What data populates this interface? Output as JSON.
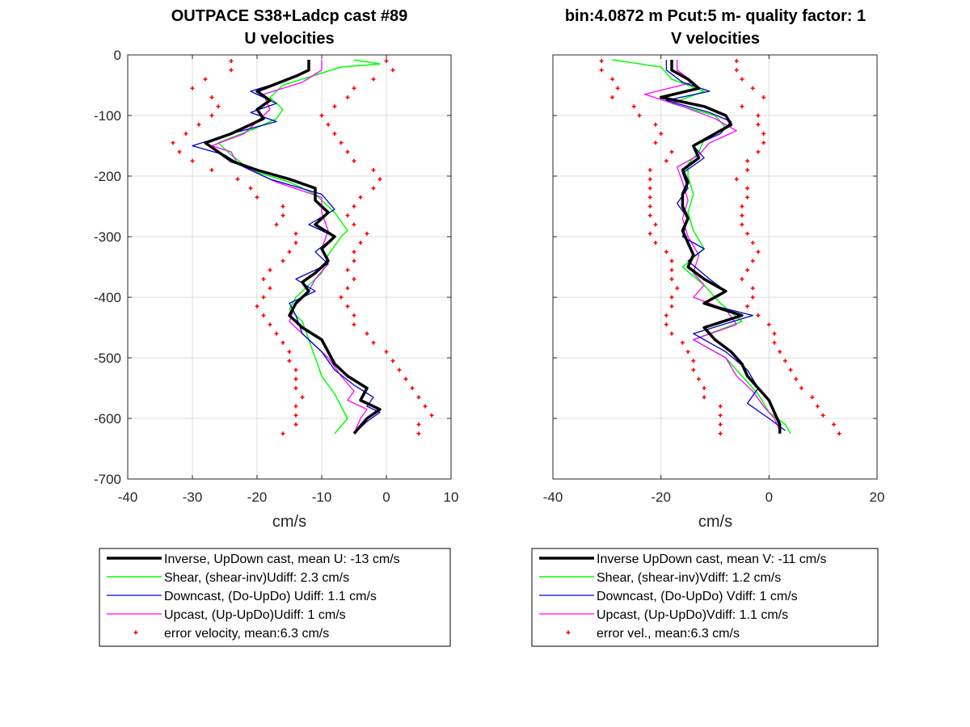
{
  "chart_data": [
    {
      "type": "line",
      "title": "OUTPACE S38+Ladcp cast #89",
      "subtitle": "U velocities",
      "xlabel": "cm/s",
      "ylabel": "",
      "xlim": [
        -40,
        10
      ],
      "ylim": [
        -700,
        0
      ],
      "xticks": [
        "-40",
        "-30",
        "-20",
        "-10",
        "0",
        "10"
      ],
      "yticks": [
        "0",
        "-100",
        "-200",
        "-300",
        "-400",
        "-500",
        "-600",
        "-700"
      ],
      "grid": true,
      "legend_position": "below",
      "colors": {
        "inverse": "#000000",
        "shear": "#00ff00",
        "down": "#0000cc",
        "up": "#ff00ff",
        "err": "#ff0000"
      },
      "legend": [
        "Inverse, UpDown cast, mean U:  -13 cm/s",
        "Shear, (shear-inv)Udiff:  2.3 cm/s",
        "Downcast, (Do-UpDo) Udiff:  1.1 cm/s",
        "Upcast, (Up-UpDo)Udiff:  1 cm/s",
        "error velocity, mean:6.3 cm/s"
      ],
      "series": [
        {
          "name": "inverse",
          "y": [
            -8,
            -25,
            -35,
            -60,
            -75,
            -90,
            -105,
            -115,
            -130,
            -145,
            -160,
            -175,
            -190,
            -205,
            -220,
            -240,
            -260,
            -280,
            -300,
            -320,
            -340,
            -360,
            -375,
            -390,
            -410,
            -430,
            -450,
            -470,
            -490,
            -510,
            -530,
            -550,
            -570,
            -585,
            -600,
            -625
          ],
          "x": [
            -12,
            -12,
            -14,
            -20,
            -18,
            -20,
            -19,
            -21,
            -24,
            -28,
            -26,
            -24,
            -20,
            -15,
            -11,
            -11,
            -9,
            -11,
            -8,
            -10,
            -9,
            -11,
            -13,
            -12,
            -14,
            -15,
            -13,
            -10,
            -9,
            -8,
            -6,
            -3,
            -4,
            -1,
            -3,
            -5
          ]
        },
        {
          "name": "shear",
          "y": [
            -8,
            -15,
            -20,
            -30,
            -50,
            -70,
            -90,
            -105,
            -120,
            -145,
            -165,
            -190,
            -210,
            -230,
            -260,
            -290,
            -300,
            -330,
            -360,
            -380,
            -400,
            -420,
            -440,
            -470,
            -500,
            -530,
            -560,
            -600,
            -625
          ],
          "x": [
            -5,
            -1,
            -7,
            -10,
            -16,
            -18,
            -16,
            -17,
            -20,
            -26,
            -24,
            -21,
            -15,
            -11,
            -8,
            -6,
            -7,
            -9,
            -10,
            -12,
            -14,
            -15,
            -13,
            -12,
            -11,
            -10,
            -8,
            -6,
            -8
          ]
        },
        {
          "name": "downcast",
          "y": [
            -8,
            -25,
            -40,
            -60,
            -80,
            -95,
            -110,
            -130,
            -150,
            -165,
            -185,
            -205,
            -230,
            -255,
            -280,
            -300,
            -325,
            -345,
            -370,
            -390,
            -410,
            -430,
            -460,
            -490,
            -520,
            -545,
            -565,
            -580,
            -590,
            -605,
            -625
          ],
          "x": [
            -12,
            -12,
            -15,
            -21,
            -17,
            -21,
            -17,
            -24,
            -30,
            -25,
            -22,
            -18,
            -10,
            -8,
            -12,
            -8,
            -11,
            -9,
            -14,
            -11,
            -15,
            -14,
            -13,
            -10,
            -8,
            -5,
            -2,
            -3,
            -1,
            -3,
            -5
          ]
        },
        {
          "name": "upcast",
          "y": [
            -8,
            -25,
            -45,
            -65,
            -90,
            -110,
            -130,
            -150,
            -160,
            -180,
            -210,
            -235,
            -260,
            -290,
            -320,
            -345,
            -370,
            -390,
            -410,
            -440,
            -470,
            -500,
            -530,
            -555,
            -570,
            -585,
            -600,
            -625
          ],
          "x": [
            -10,
            -10,
            -13,
            -19,
            -18,
            -20,
            -22,
            -27,
            -24,
            -23,
            -17,
            -10,
            -10,
            -9,
            -10,
            -9,
            -11,
            -12,
            -14,
            -15,
            -12,
            -9,
            -7,
            -5,
            -6,
            -3,
            -4,
            -5
          ]
        },
        {
          "name": "error",
          "y": [
            -10,
            -25,
            -40,
            -55,
            -70,
            -85,
            -100,
            -115,
            -130,
            -145,
            -160,
            -175,
            -190,
            -205,
            -220,
            -235,
            -250,
            -265,
            -280,
            -295,
            -310,
            -325,
            -340,
            -355,
            -370,
            -385,
            -400,
            -415,
            -430,
            -445,
            -460,
            -475,
            -490,
            -505,
            -520,
            -535,
            -550,
            -565,
            -580,
            -595,
            -610,
            -625
          ],
          "x": [
            -24,
            -24,
            -28,
            -30,
            -27,
            -26,
            -27,
            -29,
            -31,
            -33,
            -32,
            -30,
            -27,
            -23,
            -21,
            -20,
            -16,
            -16,
            -17,
            -14,
            -14,
            -15,
            -16,
            -18,
            -19,
            -18,
            -19,
            -20,
            -19,
            -18,
            -17,
            -16,
            -15,
            -15,
            -14,
            -14,
            -14,
            -13,
            -14,
            -14,
            -14,
            -16
          ],
          "x2": [
            0,
            1,
            -2,
            -5,
            -6,
            -8,
            -10,
            -9,
            -8,
            -7,
            -6,
            -5,
            -2,
            -1,
            -2,
            -4,
            -5,
            -6,
            -5,
            -3,
            -4,
            -5,
            -5,
            -6,
            -5,
            -6,
            -7,
            -6,
            -5,
            -5,
            -3,
            -2,
            0,
            1,
            2,
            3,
            4,
            5,
            6,
            7,
            5,
            5
          ]
        }
      ]
    },
    {
      "type": "line",
      "title": "bin:4.0872 m  Pcut:5 m- quality factor:  1",
      "subtitle": "V velocities",
      "xlabel": "cm/s",
      "ylabel": "",
      "xlim": [
        -40,
        20
      ],
      "ylim": [
        -700,
        0
      ],
      "xticks": [
        "-40",
        "-20",
        "0",
        "20"
      ],
      "grid": true,
      "legend_position": "below",
      "legend": [
        "Inverse UpDown cast, mean V:  -11 cm/s",
        "Shear, (shear-inv)Vdiff:  1.2 cm/s",
        "Downcast, (Do-UpDo) Vdiff:  1 cm/s",
        "Upcast, (Up-UpDo)Vdiff:  1.1 cm/s",
        "error vel., mean:6.3 cm/s"
      ],
      "series": [
        {
          "name": "inverse",
          "y": [
            -8,
            -25,
            -40,
            -55,
            -70,
            -85,
            -100,
            -115,
            -130,
            -150,
            -170,
            -190,
            -210,
            -230,
            -250,
            -270,
            -290,
            -310,
            -330,
            -350,
            -370,
            -390,
            -410,
            -430,
            -450,
            -470,
            -490,
            -510,
            -530,
            -550,
            -570,
            -590,
            -610,
            -625
          ],
          "x": [
            -18,
            -18,
            -15,
            -13,
            -20,
            -12,
            -8,
            -7,
            -10,
            -14,
            -13,
            -16,
            -15,
            -16,
            -16,
            -15,
            -16,
            -15,
            -14,
            -15,
            -12,
            -8,
            -12,
            -5,
            -12,
            -10,
            -7,
            -5,
            -4,
            -2,
            0,
            1,
            2,
            2
          ]
        },
        {
          "name": "shear",
          "y": [
            -8,
            -20,
            -40,
            -60,
            -80,
            -100,
            -120,
            -140,
            -160,
            -180,
            -200,
            -230,
            -260,
            -290,
            -320,
            -350,
            -380,
            -410,
            -440,
            -470,
            -500,
            -530,
            -560,
            -590,
            -610,
            -625
          ],
          "x": [
            -29,
            -20,
            -18,
            -12,
            -18,
            -10,
            -8,
            -12,
            -13,
            -15,
            -15,
            -14,
            -15,
            -14,
            -12,
            -16,
            -12,
            -9,
            -5,
            -14,
            -8,
            -5,
            -2,
            0,
            3,
            4
          ]
        },
        {
          "name": "downcast",
          "y": [
            -8,
            -25,
            -45,
            -60,
            -75,
            -95,
            -110,
            -130,
            -150,
            -170,
            -195,
            -220,
            -245,
            -270,
            -300,
            -320,
            -340,
            -370,
            -390,
            -410,
            -430,
            -460,
            -490,
            -520,
            -550,
            -575,
            -600,
            -620
          ],
          "x": [
            -19,
            -19,
            -16,
            -11,
            -19,
            -11,
            -7,
            -9,
            -14,
            -12,
            -16,
            -15,
            -17,
            -15,
            -16,
            -12,
            -15,
            -11,
            -8,
            -12,
            -3,
            -14,
            -8,
            -4,
            -2,
            -4,
            0,
            3
          ]
        },
        {
          "name": "upcast",
          "y": [
            -8,
            -25,
            -45,
            -65,
            -85,
            -105,
            -125,
            -145,
            -165,
            -185,
            -210,
            -240,
            -270,
            -300,
            -330,
            -360,
            -380,
            -400,
            -420,
            -445,
            -470,
            -500,
            -530,
            -555,
            -580,
            -600,
            -620
          ],
          "x": [
            -17,
            -17,
            -14,
            -23,
            -16,
            -10,
            -6,
            -11,
            -13,
            -17,
            -16,
            -15,
            -16,
            -15,
            -13,
            -14,
            -12,
            -14,
            -8,
            -6,
            -14,
            -8,
            -6,
            -3,
            -1,
            1,
            2
          ]
        },
        {
          "name": "error",
          "y": [
            -10,
            -25,
            -40,
            -55,
            -70,
            -85,
            -100,
            -115,
            -130,
            -145,
            -160,
            -175,
            -190,
            -205,
            -220,
            -235,
            -250,
            -265,
            -280,
            -295,
            -310,
            -325,
            -340,
            -355,
            -370,
            -385,
            -400,
            -415,
            -430,
            -445,
            -460,
            -475,
            -490,
            -505,
            -520,
            -535,
            -550,
            -565,
            -580,
            -595,
            -610,
            -625
          ],
          "x": [
            -31,
            -31,
            -29,
            -28,
            -29,
            -25,
            -24,
            -21,
            -20,
            -21,
            -18,
            -19,
            -22,
            -22,
            -22,
            -22,
            -22,
            -22,
            -21,
            -22,
            -21,
            -19,
            -18,
            -18,
            -18,
            -17,
            -18,
            -18,
            -19,
            -19,
            -18,
            -16,
            -15,
            -14,
            -14,
            -13,
            -12,
            -12,
            -9,
            -9,
            -9,
            -9
          ],
          "x2": [
            -6,
            -6,
            -5,
            -3,
            -1,
            -5,
            -2,
            -2,
            -1,
            -1,
            -2,
            -4,
            -4,
            -6,
            -4,
            -4,
            -5,
            -5,
            -5,
            -4,
            -3,
            -2,
            -3,
            -4,
            -5,
            -3,
            -3,
            -4,
            -2,
            0,
            1,
            1,
            2,
            3,
            4,
            5,
            6,
            8,
            9,
            10,
            12,
            13
          ]
        }
      ]
    }
  ]
}
